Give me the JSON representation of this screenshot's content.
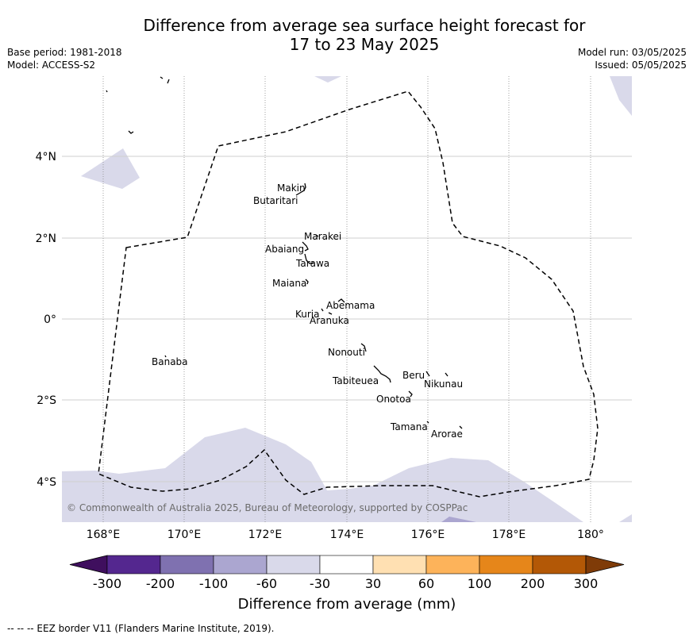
{
  "header": {
    "title_line1": "Difference from average sea surface height forecast for",
    "title_line2": "17 to 23 May 2025",
    "base_period": "Base period: 1981-2018",
    "model": "Model: ACCESS-S2",
    "model_run": "Model run: 03/05/2025",
    "issued": "Issued: 05/05/2025"
  },
  "map": {
    "lat_ticks": [
      "4°N",
      "2°N",
      "0°",
      "2°S",
      "4°S"
    ],
    "lon_ticks": [
      "168°E",
      "170°E",
      "172°E",
      "174°E",
      "176°E",
      "178°E",
      "180°"
    ],
    "copyright": "© Commonwealth of Australia 2025, Bureau of Meteorology, supported by COSPPac",
    "places": [
      {
        "name": "Makin"
      },
      {
        "name": "Butaritari"
      },
      {
        "name": "Marakei"
      },
      {
        "name": "Abaiang"
      },
      {
        "name": "Tarawa"
      },
      {
        "name": "Maiana"
      },
      {
        "name": "Abemama"
      },
      {
        "name": "Kuria"
      },
      {
        "name": "Aranuka"
      },
      {
        "name": "Nonouti"
      },
      {
        "name": "Banaba"
      },
      {
        "name": "Tabiteuea"
      },
      {
        "name": "Beru"
      },
      {
        "name": "Nikunau"
      },
      {
        "name": "Onotoa"
      },
      {
        "name": "Tamana"
      },
      {
        "name": "Arorae"
      }
    ]
  },
  "colorbar": {
    "labels": [
      "-300",
      "-200",
      "-100",
      "-60",
      "-30",
      "30",
      "60",
      "100",
      "200",
      "300"
    ],
    "colors": [
      "#3f0f5e",
      "#54278f",
      "#7f71b0",
      "#aba6d0",
      "#d9d9ea",
      "#ffffff",
      "#ffe0b2",
      "#fdb35a",
      "#e6861a",
      "#b35806",
      "#7f3b08"
    ],
    "title": "Difference from average (mm)"
  },
  "footer": "--  --  -- EEZ border V11 (Flanders Marine Institute, 2019)."
}
